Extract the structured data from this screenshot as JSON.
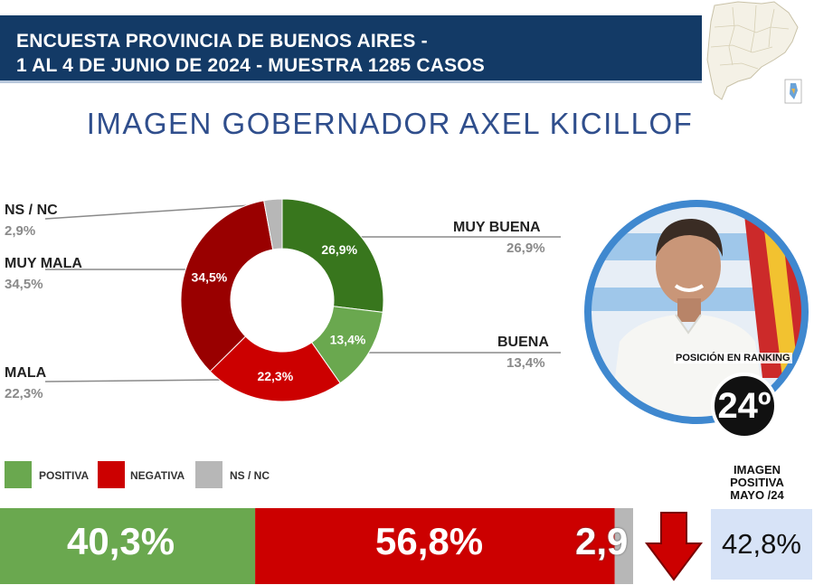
{
  "header": {
    "line1": "ENCUESTA PROVINCIA DE BUENOS AIRES -",
    "line2": "1 AL 4 DE JUNIO DE 2024 - MUESTRA 1285 CASOS"
  },
  "title": "IMAGEN GOBERNADOR  AXEL KICILLOF",
  "chart_data": [
    {
      "type": "pie",
      "title": "IMAGEN GOBERNADOR  AXEL KICILLOF",
      "slices": [
        {
          "label": "MUY BUENA",
          "value": 26.9,
          "text": "26,9%",
          "color": "#38761d"
        },
        {
          "label": "BUENA",
          "value": 13.4,
          "text": "13,4%",
          "color": "#6aa84f"
        },
        {
          "label": "MALA",
          "value": 22.3,
          "text": "22,3%",
          "color": "#cc0000"
        },
        {
          "label": "MUY MALA",
          "value": 34.5,
          "text": "34,5%",
          "color": "#990000"
        },
        {
          "label": "NS / NC",
          "value": 2.9,
          "text": "2,9%",
          "color": "#b7b7b7"
        }
      ],
      "side_labels": [
        {
          "label": "NS / NC",
          "value": "2,9%"
        },
        {
          "label": "MUY MALA",
          "value": "34,5%"
        },
        {
          "label": "MALA",
          "value": "22,3%"
        },
        {
          "label": "MUY BUENA",
          "value": "26,9%"
        },
        {
          "label": "BUENA",
          "value": "13,4%"
        }
      ]
    },
    {
      "type": "bar",
      "orientation": "horizontal-stacked",
      "categories": [
        "POSITIVA",
        "NEGATIVA",
        "NS / NC"
      ],
      "values": [
        40.3,
        56.8,
        2.9
      ],
      "texts": [
        "40,3%",
        "56,8%",
        "2,9"
      ],
      "colors": [
        "#6aa84f",
        "#cc0000",
        "#b7b7b7"
      ]
    }
  ],
  "legend": [
    {
      "label": "POSITIVA",
      "color": "#6aa84f"
    },
    {
      "label": "NEGATIVA",
      "color": "#cc0000"
    },
    {
      "label": "NS / NC",
      "color": "#b7b7b7"
    }
  ],
  "ranking": {
    "label": "POSICIÓN EN RANKING",
    "value": "24º"
  },
  "previous": {
    "head_l1": "IMAGEN",
    "head_l2": "POSITIVA",
    "head_l3": "MAYO /24",
    "value": "42,8%",
    "trend_icon": "down-arrow-icon",
    "trend_color": "#cc0000"
  }
}
